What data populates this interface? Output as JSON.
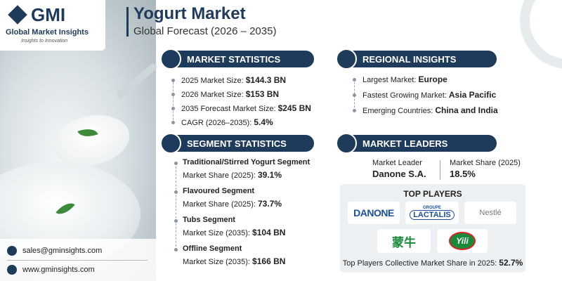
{
  "logo": {
    "mark": "GMI",
    "name": "Global Market Insights",
    "tagline": "Insights to Innovation"
  },
  "header": {
    "title": "Yogurt Market",
    "subtitle": "Global Forecast (2026 – 2035)"
  },
  "market_statistics": {
    "title": "MARKET STATISTICS",
    "items": [
      {
        "label": "2025 Market Size:",
        "value": "$144.3 BN"
      },
      {
        "label": "2026 Market Size:",
        "value": "$153 BN"
      },
      {
        "label": "2035 Forecast Market Size:",
        "value": "$245 BN"
      },
      {
        "label": "CAGR (2026–2035):",
        "value": "5.4%"
      }
    ]
  },
  "regional_insights": {
    "title": "REGIONAL INSIGHTS",
    "items": [
      {
        "label": "Largest Market:",
        "value": "Europe"
      },
      {
        "label": "Fastest Growing Market:",
        "value": "Asia Pacific"
      },
      {
        "label": "Emerging Countries:",
        "value": "China and India"
      }
    ]
  },
  "segment_statistics": {
    "title": "SEGMENT STATISTICS",
    "items": [
      {
        "name": "Traditional/Stirred Yogurt Segment",
        "label": "Market Share (2025):",
        "value": "39.1%"
      },
      {
        "name": "Flavoured Segment",
        "label": "Market Share (2025):",
        "value": "73.7%"
      },
      {
        "name": "Tubs Segment",
        "label": "Market Size (2035):",
        "value": "$104 BN"
      },
      {
        "name": "Offline Segment",
        "label": "Market Size (2035):",
        "value": "$166 BN"
      }
    ]
  },
  "market_leaders": {
    "title": "MARKET LEADERS",
    "leader_label": "Market Leader",
    "leader": "Danone S.A.",
    "share_label": "Market Share (2025)",
    "share": "18.5%"
  },
  "top_players": {
    "title": "TOP PLAYERS",
    "logos": [
      "DANONE",
      "GROUPE",
      "LACTALIS",
      "Nestlé",
      "蒙牛",
      "Yili"
    ],
    "footer_label": "Top Players Collective Market Share in 2025:",
    "footer_value": "52.7%"
  },
  "contact": {
    "email": "sales@gminsights.com",
    "website": "www.gminsights.com"
  }
}
